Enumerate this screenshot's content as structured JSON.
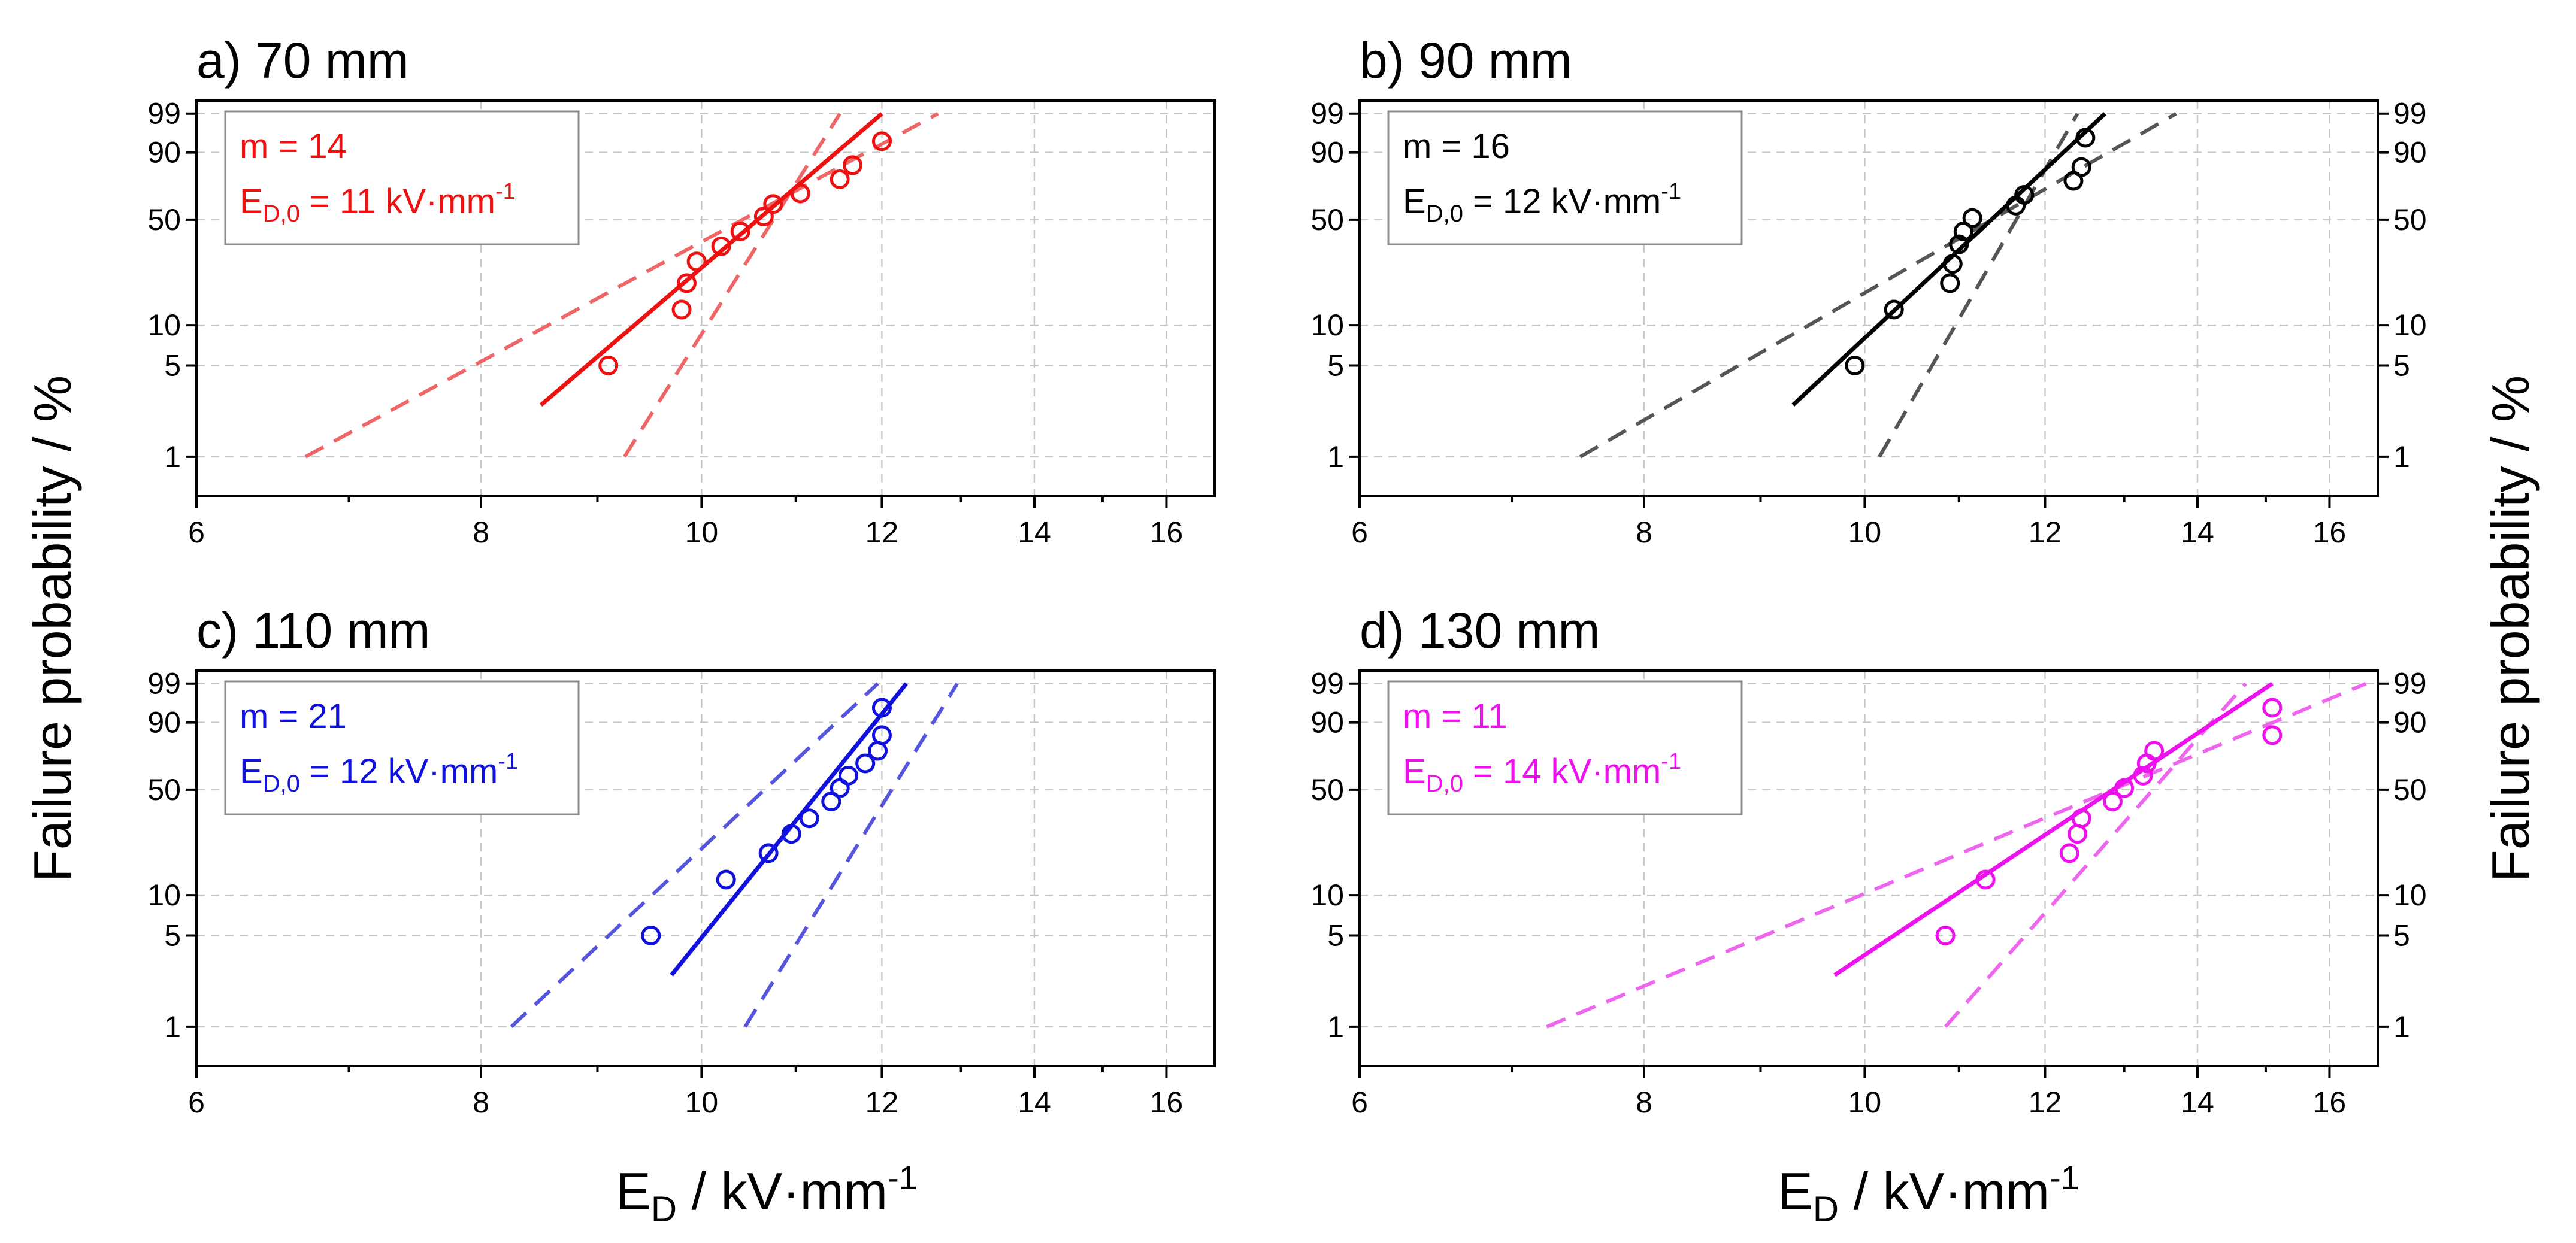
{
  "chart_data": {
    "type": "scatter",
    "x_title": "E",
    "x_title_sub": "D",
    "x_title_unit": " / kV·mm",
    "x_title_sup": "-1",
    "y_title": "Failure probability / %",
    "x_axis": {
      "scale": "log",
      "range": [
        6,
        16.8
      ],
      "ticks": [
        6,
        8,
        10,
        12,
        14,
        16
      ],
      "minor_ticks": [
        7,
        9,
        11,
        13,
        15
      ]
    },
    "y_axis": {
      "scale": "weibull",
      "range_percent": [
        0.5,
        99.7
      ],
      "ticks": [
        1,
        5,
        10,
        50,
        90,
        99
      ]
    },
    "panels": [
      {
        "title": "a) 70 mm",
        "color": "#ee1111",
        "band_color": "#ee6666",
        "m_label": "m = 14",
        "ed_label": "E",
        "ed_sub": "D,0",
        "ed_val": " = 11 kV·mm",
        "ed_sup": "-1",
        "points": [
          [
            9.1,
            5
          ],
          [
            9.8,
            13
          ],
          [
            9.85,
            20
          ],
          [
            9.95,
            28
          ],
          [
            10.2,
            35
          ],
          [
            10.4,
            43
          ],
          [
            10.65,
            52
          ],
          [
            10.75,
            60
          ],
          [
            11.05,
            67
          ],
          [
            11.5,
            76
          ],
          [
            11.65,
            84
          ],
          [
            12.0,
            94
          ]
        ],
        "fit": [
          [
            8.5,
            2.5
          ],
          [
            12.0,
            99
          ]
        ],
        "band_low": [
          [
            6.7,
            1
          ],
          [
            12.7,
            99
          ]
        ],
        "band_high": [
          [
            9.25,
            1
          ],
          [
            11.5,
            99
          ]
        ]
      },
      {
        "title": "b) 90 mm",
        "color": "#000000",
        "band_color": "#555555",
        "m_label": "m = 16",
        "ed_label": "E",
        "ed_sub": "D,0",
        "ed_val": " = 12 kV·mm",
        "ed_sup": "-1",
        "points": [
          [
            9.9,
            5
          ],
          [
            10.3,
            13
          ],
          [
            10.9,
            20
          ],
          [
            10.93,
            27
          ],
          [
            11.0,
            36
          ],
          [
            11.05,
            43
          ],
          [
            11.15,
            51
          ],
          [
            11.65,
            59
          ],
          [
            11.75,
            66
          ],
          [
            12.35,
            75
          ],
          [
            12.45,
            83
          ],
          [
            12.5,
            95
          ]
        ],
        "fit": [
          [
            9.3,
            2.5
          ],
          [
            12.75,
            99
          ]
        ],
        "band_low": [
          [
            7.5,
            1
          ],
          [
            13.7,
            99
          ]
        ],
        "band_high": [
          [
            10.15,
            1
          ],
          [
            12.4,
            99
          ]
        ]
      },
      {
        "title": "c) 110 mm",
        "color": "#1111dd",
        "band_color": "#5555dd",
        "m_label": "m = 21",
        "ed_label": "E",
        "ed_sub": "D,0",
        "ed_val": " = 12 kV·mm",
        "ed_sup": "-1",
        "points": [
          [
            9.5,
            5
          ],
          [
            10.25,
            13
          ],
          [
            10.7,
            20
          ],
          [
            10.95,
            27
          ],
          [
            11.15,
            34
          ],
          [
            11.4,
            43
          ],
          [
            11.5,
            51
          ],
          [
            11.6,
            59
          ],
          [
            11.8,
            67
          ],
          [
            11.95,
            75
          ],
          [
            12.0,
            84
          ],
          [
            12.0,
            95
          ]
        ],
        "fit": [
          [
            9.7,
            2.5
          ],
          [
            12.3,
            99
          ]
        ],
        "band_low": [
          [
            8.25,
            1
          ],
          [
            11.95,
            99
          ]
        ],
        "band_high": [
          [
            10.45,
            1
          ],
          [
            12.95,
            99
          ]
        ]
      },
      {
        "title": "d) 130 mm",
        "color": "#ee11ee",
        "band_color": "#ee66ee",
        "m_label": "m = 11",
        "ed_label": "E",
        "ed_sub": "D,0",
        "ed_val": " = 14 kV·mm",
        "ed_sup": "-1",
        "points": [
          [
            10.85,
            5
          ],
          [
            11.3,
            13
          ],
          [
            12.3,
            20
          ],
          [
            12.4,
            27
          ],
          [
            12.45,
            34
          ],
          [
            12.85,
            43
          ],
          [
            13.0,
            51
          ],
          [
            13.25,
            59
          ],
          [
            13.3,
            67
          ],
          [
            13.4,
            75
          ],
          [
            15.1,
            84
          ],
          [
            15.1,
            95
          ]
        ],
        "fit": [
          [
            9.7,
            2.5
          ],
          [
            15.1,
            99
          ]
        ],
        "band_low": [
          [
            7.25,
            1
          ],
          [
            16.6,
            99
          ]
        ],
        "band_high": [
          [
            10.85,
            1
          ],
          [
            14.7,
            99
          ]
        ]
      }
    ]
  }
}
